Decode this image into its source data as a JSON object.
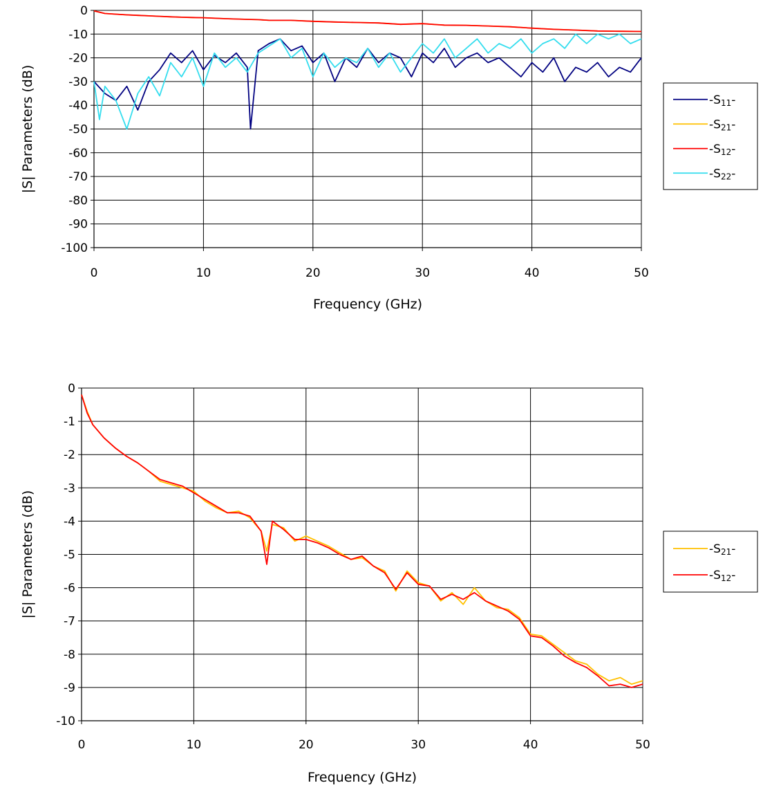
{
  "chart_data": [
    {
      "type": "line",
      "xlabel": "Frequency (GHz)",
      "ylabel": "|S| Parameters (dB)",
      "xlim": [
        0,
        50
      ],
      "ylim": [
        -100,
        0
      ],
      "xticks": [
        0,
        10,
        20,
        30,
        40,
        50
      ],
      "yticks": [
        0,
        -10,
        -20,
        -30,
        -40,
        -50,
        -60,
        -70,
        -80,
        -90,
        -100
      ],
      "grid": true,
      "legend_position": "right",
      "series": [
        {
          "name": "S11",
          "color": "#000080",
          "x": [
            0,
            1,
            2,
            3,
            4,
            5,
            6,
            7,
            8,
            9,
            10,
            11,
            12,
            13,
            14,
            14.3,
            15,
            16,
            17,
            18,
            19,
            20,
            21,
            22,
            23,
            24,
            25,
            26,
            27,
            28,
            29,
            30,
            31,
            32,
            33,
            34,
            35,
            36,
            37,
            38,
            39,
            40,
            41,
            42,
            43,
            44,
            45,
            46,
            47,
            48,
            49,
            50
          ],
          "values": [
            -30,
            -35,
            -38,
            -32,
            -42,
            -30,
            -25,
            -18,
            -22,
            -17,
            -25,
            -19,
            -22,
            -18,
            -24,
            -50,
            -17,
            -14,
            -12,
            -17,
            -15,
            -22,
            -18,
            -30,
            -20,
            -24,
            -16,
            -22,
            -18,
            -20,
            -28,
            -18,
            -22,
            -16,
            -24,
            -20,
            -18,
            -22,
            -20,
            -24,
            -28,
            -22,
            -26,
            -20,
            -30,
            -24,
            -26,
            -22,
            -28,
            -24,
            -26,
            -20
          ]
        },
        {
          "name": "S21",
          "color": "#FFC000",
          "x": [
            0,
            1,
            2,
            3,
            4,
            5,
            6,
            7,
            8,
            9,
            10,
            12,
            14,
            15,
            16,
            18,
            20,
            22,
            24,
            26,
            28,
            30,
            32,
            34,
            36,
            38,
            40,
            42,
            44,
            46,
            48,
            50
          ],
          "values": [
            -0.2,
            -1.3,
            -1.6,
            -1.9,
            -2.1,
            -2.3,
            -2.5,
            -2.7,
            -2.9,
            -3.0,
            -3.1,
            -3.5,
            -3.8,
            -3.9,
            -4.2,
            -4.2,
            -4.6,
            -4.9,
            -5.1,
            -5.3,
            -5.9,
            -5.6,
            -6.2,
            -6.3,
            -6.6,
            -6.9,
            -7.5,
            -8.0,
            -8.3,
            -8.7,
            -8.8,
            -8.9
          ]
        },
        {
          "name": "S12",
          "color": "#FF0000",
          "x": [
            0,
            1,
            2,
            3,
            4,
            5,
            6,
            7,
            8,
            9,
            10,
            12,
            14,
            15,
            16,
            18,
            20,
            22,
            24,
            26,
            28,
            30,
            32,
            34,
            36,
            38,
            40,
            42,
            44,
            46,
            48,
            50
          ],
          "values": [
            -0.2,
            -1.3,
            -1.6,
            -1.9,
            -2.1,
            -2.3,
            -2.5,
            -2.7,
            -2.9,
            -3.0,
            -3.1,
            -3.5,
            -3.8,
            -3.9,
            -4.2,
            -4.2,
            -4.6,
            -4.9,
            -5.1,
            -5.3,
            -5.9,
            -5.6,
            -6.2,
            -6.3,
            -6.6,
            -6.9,
            -7.5,
            -8.0,
            -8.3,
            -8.7,
            -8.8,
            -8.9
          ]
        },
        {
          "name": "S22",
          "color": "#33DDEE",
          "x": [
            0,
            0.5,
            1,
            2,
            3,
            4,
            5,
            6,
            7,
            8,
            9,
            10,
            11,
            12,
            13,
            14,
            15,
            16,
            17,
            18,
            19,
            20,
            21,
            22,
            23,
            24,
            25,
            26,
            27,
            28,
            29,
            30,
            31,
            32,
            33,
            34,
            35,
            36,
            37,
            38,
            39,
            40,
            41,
            42,
            43,
            44,
            45,
            46,
            47,
            48,
            49,
            50
          ],
          "values": [
            -30,
            -46,
            -32,
            -38,
            -50,
            -35,
            -28,
            -36,
            -22,
            -28,
            -20,
            -32,
            -18,
            -24,
            -20,
            -26,
            -18,
            -15,
            -12,
            -20,
            -16,
            -28,
            -18,
            -24,
            -20,
            -22,
            -16,
            -24,
            -18,
            -26,
            -20,
            -14,
            -18,
            -12,
            -20,
            -16,
            -12,
            -18,
            -14,
            -16,
            -12,
            -18,
            -14,
            -12,
            -16,
            -10,
            -14,
            -10,
            -12,
            -10,
            -14,
            -12
          ]
        }
      ]
    },
    {
      "type": "line",
      "xlabel": "Frequency (GHz)",
      "ylabel": "|S| Parameters (dB)",
      "xlim": [
        0,
        50
      ],
      "ylim": [
        -10,
        0
      ],
      "xticks": [
        0,
        10,
        20,
        30,
        40,
        50
      ],
      "yticks": [
        0,
        -1,
        -2,
        -3,
        -4,
        -5,
        -6,
        -7,
        -8,
        -9,
        -10
      ],
      "grid": true,
      "legend_position": "right",
      "series": [
        {
          "name": "S21",
          "color": "#FFC000",
          "x": [
            0,
            0.5,
            1,
            2,
            3,
            4,
            5,
            6,
            7,
            8,
            9,
            10,
            11,
            12,
            13,
            14,
            15,
            16,
            16.5,
            17,
            18,
            19,
            20,
            21,
            22,
            23,
            24,
            25,
            26,
            27,
            28,
            29,
            30,
            31,
            32,
            33,
            34,
            35,
            36,
            37,
            38,
            39,
            40,
            41,
            42,
            43,
            44,
            45,
            46,
            47,
            48,
            49,
            50
          ],
          "values": [
            -0.2,
            -0.7,
            -1.1,
            -1.5,
            -1.8,
            -2.05,
            -2.25,
            -2.5,
            -2.8,
            -2.9,
            -3.0,
            -3.1,
            -3.4,
            -3.6,
            -3.75,
            -3.7,
            -3.9,
            -4.3,
            -4.9,
            -4.1,
            -4.2,
            -4.6,
            -4.45,
            -4.6,
            -4.75,
            -4.95,
            -5.15,
            -5.1,
            -5.35,
            -5.5,
            -6.1,
            -5.5,
            -5.85,
            -5.95,
            -6.4,
            -6.15,
            -6.5,
            -6.0,
            -6.4,
            -6.6,
            -6.65,
            -6.9,
            -7.4,
            -7.45,
            -7.7,
            -7.95,
            -8.2,
            -8.3,
            -8.6,
            -8.8,
            -8.7,
            -8.9,
            -8.8
          ]
        },
        {
          "name": "S12",
          "color": "#FF0000",
          "x": [
            0,
            0.5,
            1,
            2,
            3,
            4,
            5,
            6,
            7,
            8,
            9,
            10,
            11,
            12,
            13,
            14,
            15,
            16,
            16.5,
            17,
            18,
            19,
            20,
            21,
            22,
            23,
            24,
            25,
            26,
            27,
            28,
            29,
            30,
            31,
            32,
            33,
            34,
            35,
            36,
            37,
            38,
            39,
            40,
            41,
            42,
            43,
            44,
            45,
            46,
            47,
            48,
            49,
            50
          ],
          "values": [
            -0.2,
            -0.75,
            -1.1,
            -1.5,
            -1.8,
            -2.05,
            -2.25,
            -2.5,
            -2.75,
            -2.85,
            -2.95,
            -3.15,
            -3.35,
            -3.55,
            -3.75,
            -3.75,
            -3.85,
            -4.3,
            -5.3,
            -4.0,
            -4.25,
            -4.55,
            -4.55,
            -4.65,
            -4.8,
            -5.0,
            -5.15,
            -5.05,
            -5.35,
            -5.55,
            -6.05,
            -5.55,
            -5.9,
            -5.95,
            -6.35,
            -6.2,
            -6.35,
            -6.15,
            -6.4,
            -6.55,
            -6.7,
            -6.95,
            -7.45,
            -7.5,
            -7.75,
            -8.05,
            -8.25,
            -8.4,
            -8.65,
            -8.95,
            -8.9,
            -9.0,
            -8.9
          ]
        }
      ]
    }
  ]
}
